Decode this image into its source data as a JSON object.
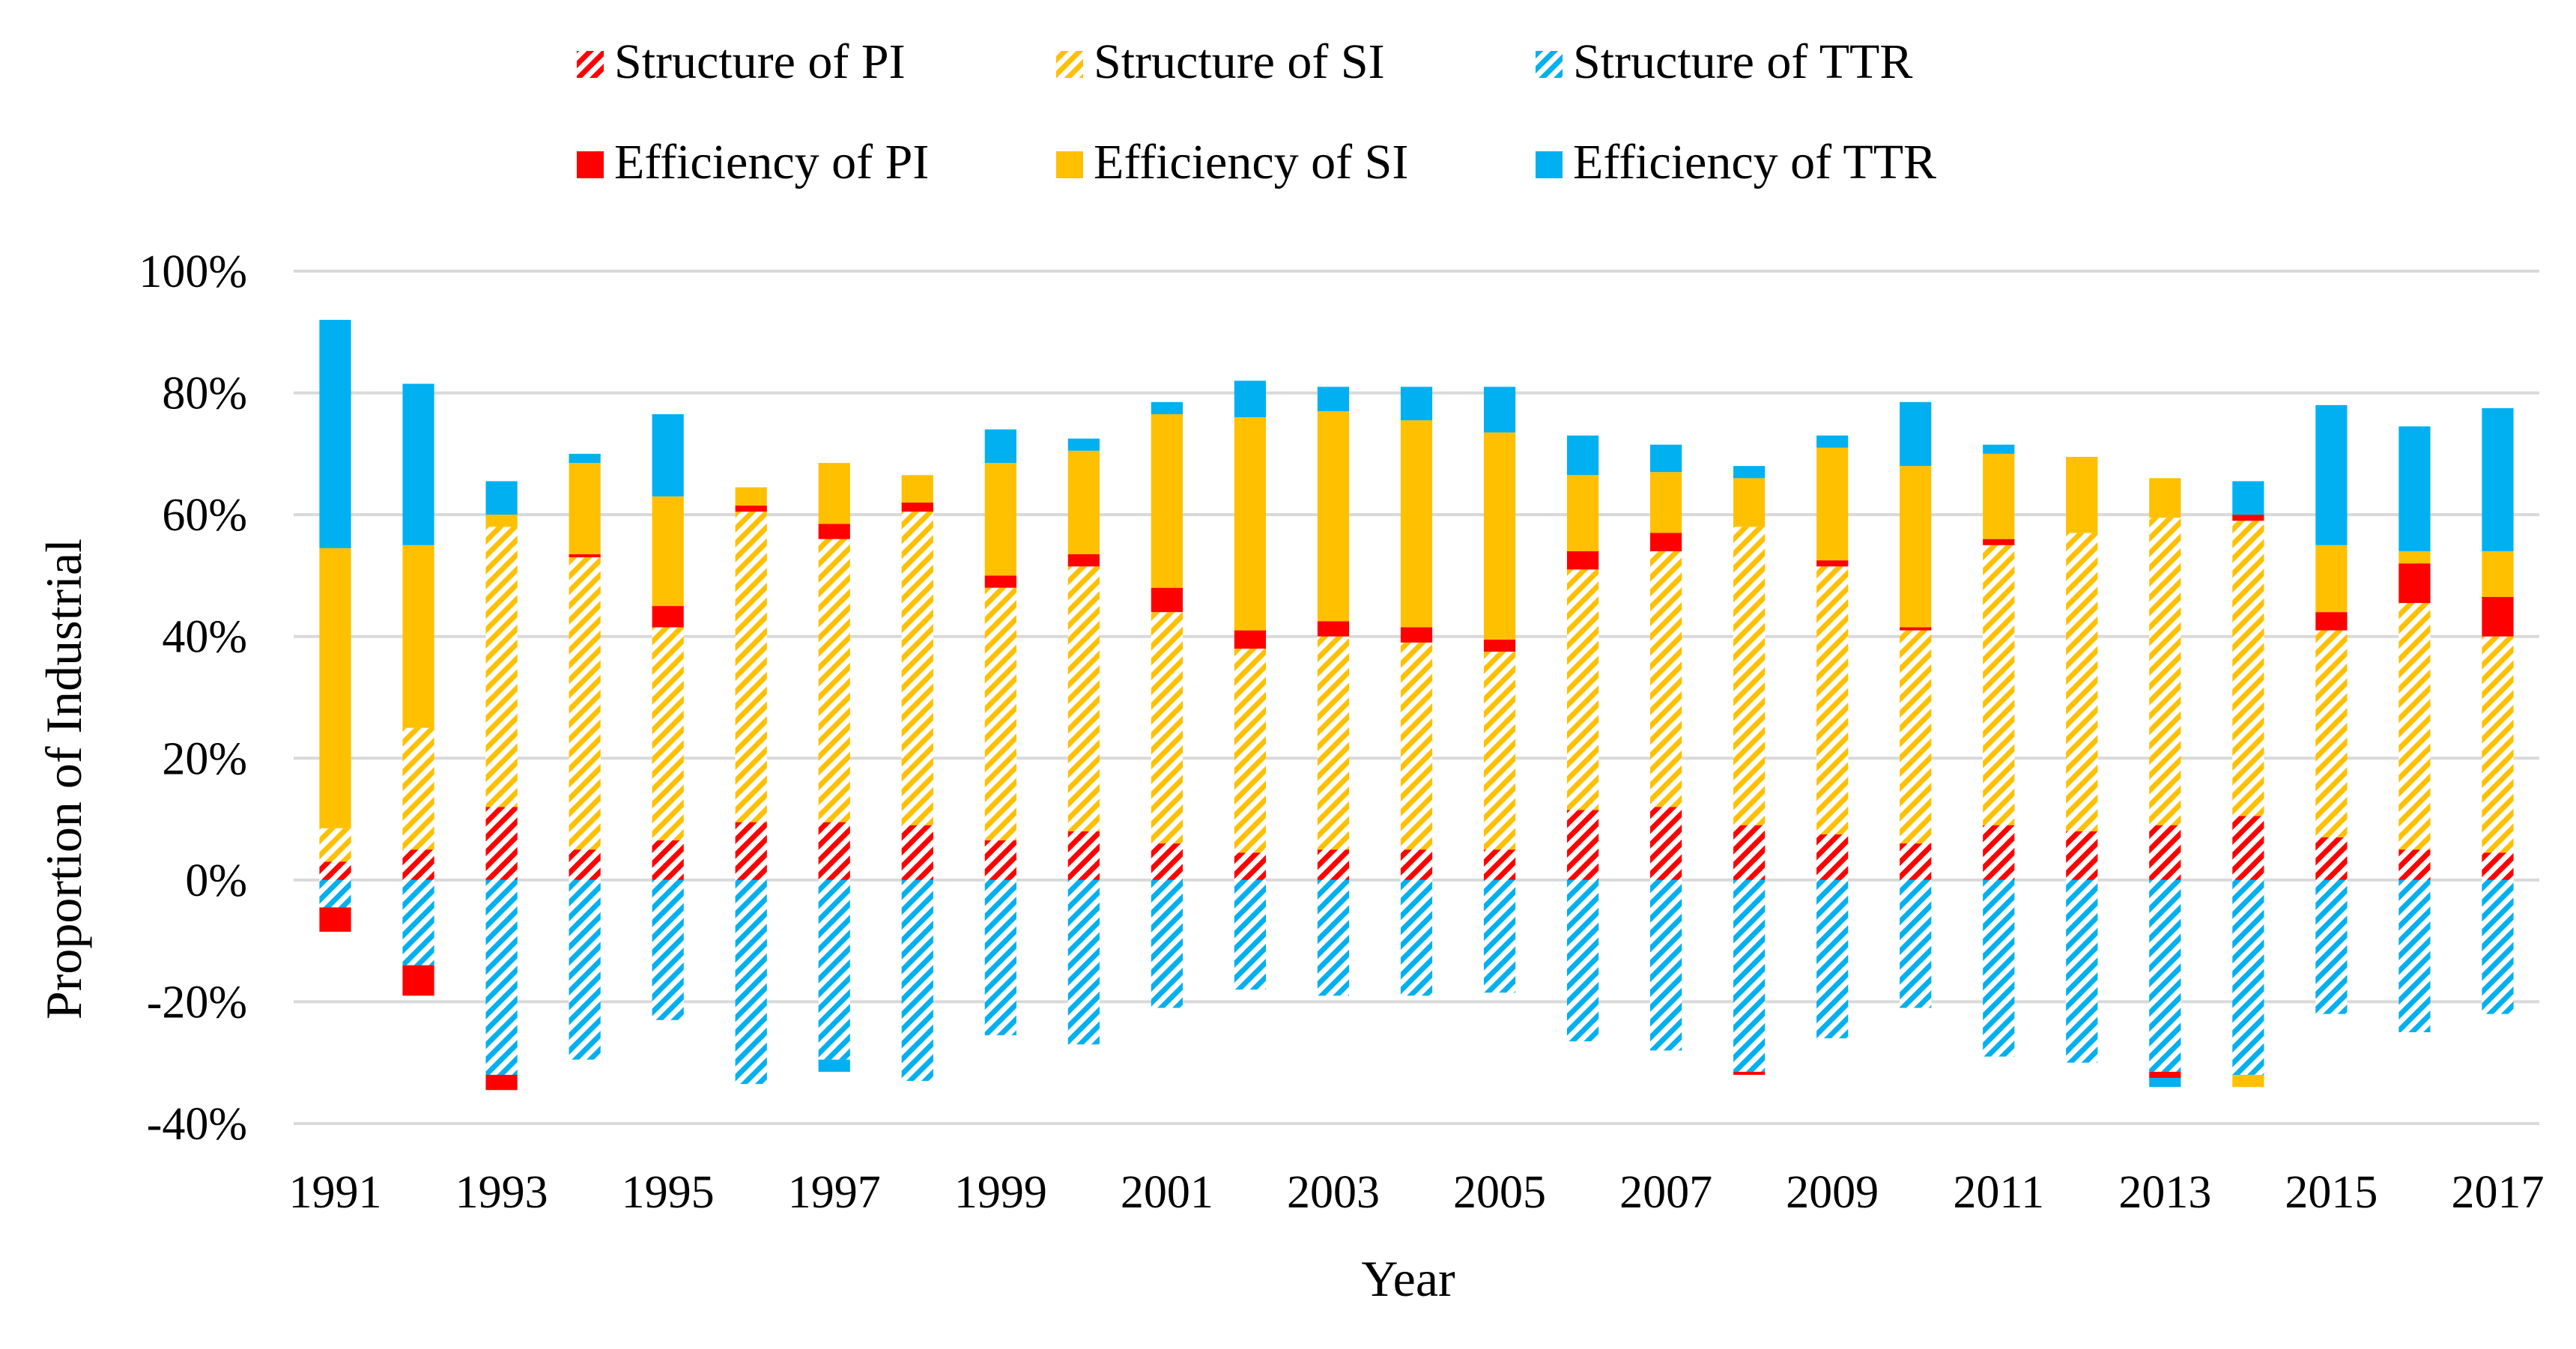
{
  "chart_data": {
    "type": "bar",
    "stacked": true,
    "title": "",
    "xlabel": "Year",
    "ylabel": "Proportion of Industrial",
    "ylim": [
      -40,
      100
    ],
    "yticks": [
      100,
      80,
      60,
      40,
      20,
      0,
      -20,
      -40
    ],
    "ytick_labels": [
      "100%",
      "80%",
      "60%",
      "40%",
      "20%",
      "0%",
      "-20%",
      "-40%"
    ],
    "grid": true,
    "legend_position": "top",
    "categories": [
      "1991",
      "1992",
      "1993",
      "1994",
      "1995",
      "1996",
      "1997",
      "1998",
      "1999",
      "2000",
      "2001",
      "2002",
      "2003",
      "2004",
      "2005",
      "2006",
      "2007",
      "2008",
      "2009",
      "2010",
      "2011",
      "2012",
      "2013",
      "2014",
      "2015",
      "2016",
      "2017"
    ],
    "xtick_labels": [
      "1991",
      "",
      "1993",
      "",
      "1995",
      "",
      "1997",
      "",
      "1999",
      "",
      "2001",
      "",
      "2003",
      "",
      "2005",
      "",
      "2007",
      "",
      "2009",
      "",
      "2011",
      "",
      "2013",
      "",
      "2015",
      "",
      "2017"
    ],
    "colors": {
      "pi": "#ff0000",
      "si": "#ffc000",
      "ttr": "#00b0f0",
      "grid": "#d9d9d9",
      "hatch_bg": "#ffffff"
    },
    "series": [
      {
        "name": "Structure of PI",
        "key": "spi",
        "pattern": "hatch",
        "color": "#ff0000",
        "values": [
          3,
          5,
          12,
          5,
          6.5,
          9.5,
          9.5,
          9,
          6.5,
          8,
          6,
          4.5,
          5,
          5,
          5,
          11.5,
          12,
          9,
          7.5,
          6,
          9,
          8,
          9,
          10.5,
          7,
          5,
          4.5
        ]
      },
      {
        "name": "Structure of SI",
        "key": "ssi",
        "pattern": "hatch",
        "color": "#ffc000",
        "values": [
          5.5,
          20,
          46,
          48,
          35,
          51,
          46.5,
          51.5,
          41.5,
          43.5,
          38,
          33.5,
          35,
          34,
          32.5,
          39.5,
          42,
          49,
          44,
          35,
          46,
          49,
          50.5,
          48.5,
          34,
          40.5,
          35.5
        ]
      },
      {
        "name": "Structure of TTR",
        "key": "sttr",
        "pattern": "hatch",
        "color": "#00b0f0",
        "values": [
          -4.5,
          -14,
          -32,
          -29.5,
          -23,
          -33.5,
          -29.5,
          -33,
          -25.5,
          -27,
          -21,
          -18,
          -19,
          -19,
          -18.5,
          -26.5,
          -28,
          -31.5,
          -26,
          -21,
          -29,
          -30,
          -31.5,
          -32,
          -22,
          -25,
          -22
        ]
      },
      {
        "name": "Efficiency of PI",
        "key": "epi",
        "pattern": "solid",
        "color": "#ff0000",
        "values": [
          -4,
          -5,
          -2.5,
          0.5,
          3.5,
          1,
          2.5,
          1.5,
          2,
          2,
          4,
          3,
          2.5,
          2.5,
          2,
          3,
          3,
          0,
          1,
          0.5,
          1,
          0,
          -1,
          1,
          3,
          6.5,
          6.5
        ]
      },
      {
        "name": "Efficiency of SI",
        "key": "esi",
        "pattern": "solid",
        "color": "#ffc000",
        "values": [
          46,
          30,
          2,
          15,
          18,
          3,
          10,
          4.5,
          18.5,
          17,
          28.5,
          35,
          34.5,
          34,
          34,
          12.5,
          10,
          8,
          18.5,
          26.5,
          14,
          12.5,
          6.5,
          0,
          11,
          2,
          7.5
        ]
      },
      {
        "name": "Efficiency of TTR",
        "key": "ettr",
        "pattern": "solid",
        "color": "#00b0f0",
        "values": [
          37.5,
          26.5,
          5.5,
          1.5,
          13.5,
          0,
          0,
          0,
          5.5,
          2,
          2,
          6,
          4,
          5.5,
          7.5,
          6.5,
          4.5,
          2,
          2,
          10.5,
          1.5,
          0,
          0,
          5.5,
          23,
          20.5,
          23.5
        ]
      }
    ],
    "negative_extras": {
      "description": "small below-axis segments",
      "esi_neg": [
        0,
        0,
        0,
        0,
        0,
        0,
        0,
        0,
        0,
        0,
        0,
        0,
        0,
        0,
        0,
        0,
        0,
        0,
        0,
        0,
        0,
        0,
        0,
        -2,
        0,
        0,
        0
      ],
      "epi_neg_extra": [
        0,
        0,
        0,
        0,
        0,
        0,
        0,
        0,
        0,
        0,
        0,
        0,
        0,
        0,
        0,
        0,
        0,
        -0.5,
        0,
        0,
        0,
        0,
        0,
        0,
        0,
        0,
        0
      ],
      "ettr_neg": [
        0,
        0,
        0,
        0,
        0,
        0,
        -2,
        0,
        0,
        0,
        0,
        0,
        0,
        0,
        0,
        0,
        0,
        0,
        0,
        0,
        0,
        0,
        -1.5,
        0,
        0,
        0,
        0
      ]
    }
  }
}
